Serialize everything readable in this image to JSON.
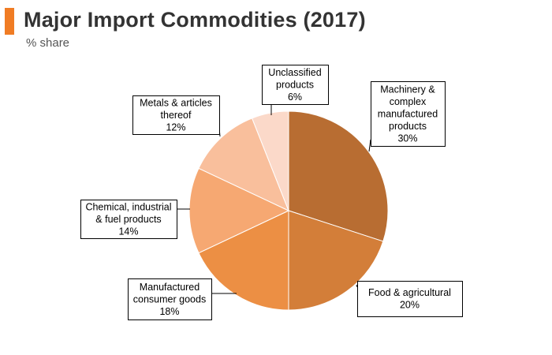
{
  "header": {
    "title": "Major Import Commodities (2017)",
    "subtitle": "% share",
    "accent_color": "#f07c24"
  },
  "chart_data": {
    "type": "pie",
    "title": "Major Import Commodities (2017)",
    "subtitle": "% share",
    "start_angle_deg": 0,
    "direction": "clockwise",
    "slices": [
      {
        "label_lines": [
          "Machinery &",
          "complex",
          "manufactured",
          "products"
        ],
        "value": 30,
        "value_text": "30%",
        "color": "#b86d32"
      },
      {
        "label_lines": [
          "Food & agricultural"
        ],
        "value": 20,
        "value_text": "20%",
        "color": "#d37e39"
      },
      {
        "label_lines": [
          "Manufactured",
          "consumer goods"
        ],
        "value": 18,
        "value_text": "18%",
        "color": "#ec8f44"
      },
      {
        "label_lines": [
          "Chemical, industrial",
          "& fuel products"
        ],
        "value": 14,
        "value_text": "14%",
        "color": "#f6a872"
      },
      {
        "label_lines": [
          "Metals & articles",
          "thereof"
        ],
        "value": 12,
        "value_text": "12%",
        "color": "#f9bf9c"
      },
      {
        "label_lines": [
          "Unclassified",
          "products"
        ],
        "value": 6,
        "value_text": "6%",
        "color": "#fbd9c9"
      }
    ]
  }
}
